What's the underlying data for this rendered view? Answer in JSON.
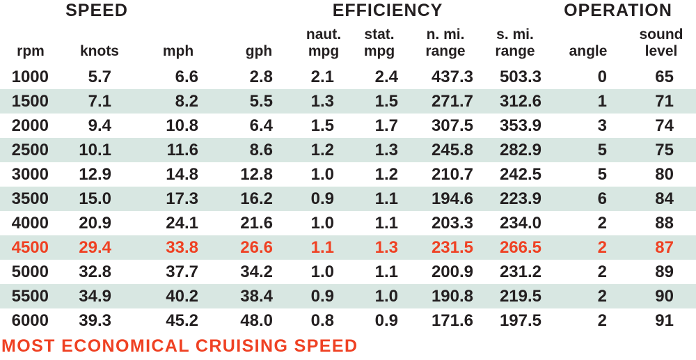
{
  "colors": {
    "accent_orange": "#ef4123",
    "stripe_teal": "#d8e7e2",
    "text_dark": "#231f20"
  },
  "group_headers": [
    {
      "id": "speed",
      "label": "SPEED"
    },
    {
      "id": "efficiency",
      "label": "EFFICIENCY"
    },
    {
      "id": "operation",
      "label": "OPERATION"
    }
  ],
  "columns": [
    {
      "id": "rpm",
      "header": "rpm"
    },
    {
      "id": "knots",
      "header": "knots"
    },
    {
      "id": "mph",
      "header": "mph"
    },
    {
      "id": "gph",
      "header": "gph"
    },
    {
      "id": "naut-mpg",
      "header": "naut.\nmpg"
    },
    {
      "id": "stat-mpg",
      "header": "stat.\nmpg"
    },
    {
      "id": "n-mi-range",
      "header": "n. mi.\nrange"
    },
    {
      "id": "s-mi-range",
      "header": "s. mi.\nrange"
    },
    {
      "id": "angle",
      "header": "angle"
    },
    {
      "id": "sound-level",
      "header": "sound\nlevel"
    }
  ],
  "rows": [
    [
      "1000",
      "5.7",
      "6.6",
      "2.8",
      "2.1",
      "2.4",
      "437.3",
      "503.3",
      "0",
      "65"
    ],
    [
      "1500",
      "7.1",
      "8.2",
      "5.5",
      "1.3",
      "1.5",
      "271.7",
      "312.6",
      "1",
      "71"
    ],
    [
      "2000",
      "9.4",
      "10.8",
      "6.4",
      "1.5",
      "1.7",
      "307.5",
      "353.9",
      "3",
      "74"
    ],
    [
      "2500",
      "10.1",
      "11.6",
      "8.6",
      "1.2",
      "1.3",
      "245.8",
      "282.9",
      "5",
      "75"
    ],
    [
      "3000",
      "12.9",
      "14.8",
      "12.8",
      "1.0",
      "1.2",
      "210.7",
      "242.5",
      "5",
      "80"
    ],
    [
      "3500",
      "15.0",
      "17.3",
      "16.2",
      "0.9",
      "1.1",
      "194.6",
      "223.9",
      "6",
      "84"
    ],
    [
      "4000",
      "20.9",
      "24.1",
      "21.6",
      "1.0",
      "1.1",
      "203.3",
      "234.0",
      "2",
      "88"
    ],
    [
      "4500",
      "29.4",
      "33.8",
      "26.6",
      "1.1",
      "1.3",
      "231.5",
      "266.5",
      "2",
      "87"
    ],
    [
      "5000",
      "32.8",
      "37.7",
      "34.2",
      "1.0",
      "1.1",
      "200.9",
      "231.2",
      "2",
      "89"
    ],
    [
      "5500",
      "34.9",
      "40.2",
      "38.4",
      "0.9",
      "1.0",
      "190.8",
      "219.5",
      "2",
      "90"
    ],
    [
      "6000",
      "39.3",
      "45.2",
      "48.0",
      "0.8",
      "0.9",
      "171.6",
      "197.5",
      "2",
      "91"
    ]
  ],
  "highlight_row_index": 7,
  "footer": {
    "label": "MOST ECONOMICAL CRUISING SPEED"
  },
  "chart_data": {
    "type": "table",
    "title": "Boat performance test data",
    "column_groups": [
      {
        "label": "SPEED",
        "columns": [
          "rpm",
          "knots",
          "mph"
        ]
      },
      {
        "label": "EFFICIENCY",
        "columns": [
          "gph",
          "naut. mpg",
          "stat. mpg",
          "n. mi. range",
          "s. mi. range"
        ]
      },
      {
        "label": "OPERATION",
        "columns": [
          "angle",
          "sound level"
        ]
      }
    ],
    "columns": [
      "rpm",
      "knots",
      "mph",
      "gph",
      "naut. mpg",
      "stat. mpg",
      "n. mi. range",
      "s. mi. range",
      "angle",
      "sound level"
    ],
    "rows": [
      [
        1000,
        5.7,
        6.6,
        2.8,
        2.1,
        2.4,
        437.3,
        503.3,
        0,
        65
      ],
      [
        1500,
        7.1,
        8.2,
        5.5,
        1.3,
        1.5,
        271.7,
        312.6,
        1,
        71
      ],
      [
        2000,
        9.4,
        10.8,
        6.4,
        1.5,
        1.7,
        307.5,
        353.9,
        3,
        74
      ],
      [
        2500,
        10.1,
        11.6,
        8.6,
        1.2,
        1.3,
        245.8,
        282.9,
        5,
        75
      ],
      [
        3000,
        12.9,
        14.8,
        12.8,
        1.0,
        1.2,
        210.7,
        242.5,
        5,
        80
      ],
      [
        3500,
        15.0,
        17.3,
        16.2,
        0.9,
        1.1,
        194.6,
        223.9,
        6,
        84
      ],
      [
        4000,
        20.9,
        24.1,
        21.6,
        1.0,
        1.1,
        203.3,
        234.0,
        2,
        88
      ],
      [
        4500,
        29.4,
        33.8,
        26.6,
        1.1,
        1.3,
        231.5,
        266.5,
        2,
        87
      ],
      [
        5000,
        32.8,
        37.7,
        34.2,
        1.0,
        1.1,
        200.9,
        231.2,
        2,
        89
      ],
      [
        5500,
        34.9,
        40.2,
        38.4,
        0.9,
        1.0,
        190.8,
        219.5,
        2,
        90
      ],
      [
        6000,
        39.3,
        45.2,
        48.0,
        0.8,
        0.9,
        171.6,
        197.5,
        2,
        91
      ]
    ],
    "highlighted_row": {
      "rpm": 4500,
      "meaning": "MOST ECONOMICAL CRUISING SPEED"
    },
    "striped_rows": "alternating, starting with second data row",
    "layout_hints": {
      "grid": false,
      "borders": false
    }
  }
}
